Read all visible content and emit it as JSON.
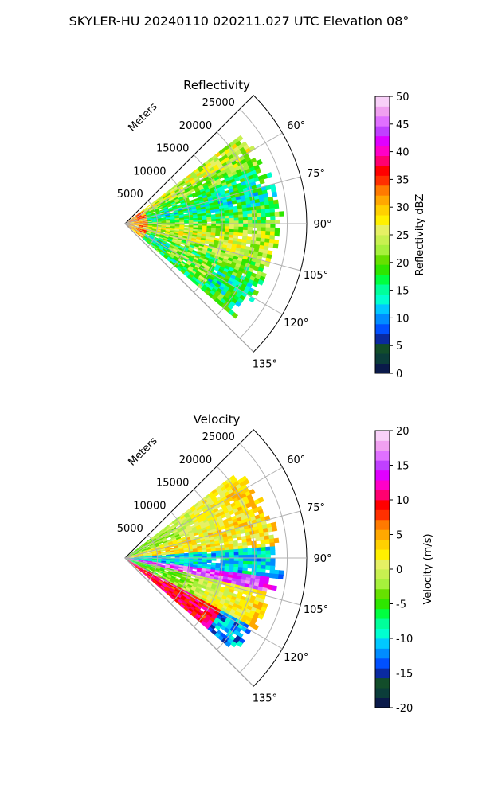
{
  "figure_title": "SKYLER-HU  20240110  020211.027 UTC Elevation 08°",
  "chart_data": [
    {
      "type": "heatmap",
      "projection": "polar-sector",
      "title": "Reflectivity",
      "range_label": "Meters",
      "range_ticks": [
        5000,
        10000,
        15000,
        20000,
        25000
      ],
      "range_max": 28000,
      "azimuth_range_deg": [
        45,
        135
      ],
      "azimuth_ticks": [
        "60°",
        "75°",
        "90°",
        "105°",
        "120°",
        "135°"
      ],
      "azimuth_tick_values": [
        60,
        75,
        90,
        105,
        120,
        135
      ],
      "grid": true,
      "colorbar": {
        "label": "Reflectivity dBZ",
        "range": [
          0,
          50
        ],
        "ticks": [
          0,
          5,
          10,
          15,
          20,
          25,
          30,
          35,
          40,
          45,
          50
        ],
        "colors": [
          "#0a1a4a",
          "#0b3d3a",
          "#124d2a",
          "#0a2aa0",
          "#0050ff",
          "#008cff",
          "#00c8ff",
          "#00ffd0",
          "#00ff9a",
          "#00ff40",
          "#2ee600",
          "#66e000",
          "#a6f03c",
          "#c8f050",
          "#e6f064",
          "#fff000",
          "#ffd000",
          "#ffa800",
          "#ff7a00",
          "#ff3000",
          "#ff0000",
          "#ff0070",
          "#ff00c8",
          "#e000ff",
          "#c040ff",
          "#e070ff",
          "#f0a0f0",
          "#f8d0f8"
        ]
      }
    },
    {
      "type": "heatmap",
      "projection": "polar-sector",
      "title": "Velocity",
      "range_label": "Meters",
      "range_ticks": [
        5000,
        10000,
        15000,
        20000,
        25000
      ],
      "range_max": 28000,
      "azimuth_range_deg": [
        45,
        135
      ],
      "azimuth_ticks": [
        "60°",
        "75°",
        "90°",
        "105°",
        "120°",
        "135°"
      ],
      "azimuth_tick_values": [
        60,
        75,
        90,
        105,
        120,
        135
      ],
      "grid": true,
      "colorbar": {
        "label": "Velocity (m/s)",
        "range": [
          -20,
          20
        ],
        "ticks": [
          -20,
          -15,
          -10,
          -5,
          0,
          5,
          10,
          15,
          20
        ],
        "colors": [
          "#0a1a4a",
          "#0b3d3a",
          "#124d2a",
          "#0a2aa0",
          "#0050ff",
          "#008cff",
          "#00c8ff",
          "#00ffd0",
          "#00ff9a",
          "#00ff40",
          "#2ee600",
          "#66e000",
          "#a6f03c",
          "#c8f050",
          "#e6f064",
          "#fff000",
          "#ffd000",
          "#ffa800",
          "#ff7a00",
          "#ff3000",
          "#ff0000",
          "#ff0070",
          "#ff00c8",
          "#e000ff",
          "#c040ff",
          "#e070ff",
          "#f0a0f0",
          "#f8d0f8"
        ]
      }
    }
  ]
}
